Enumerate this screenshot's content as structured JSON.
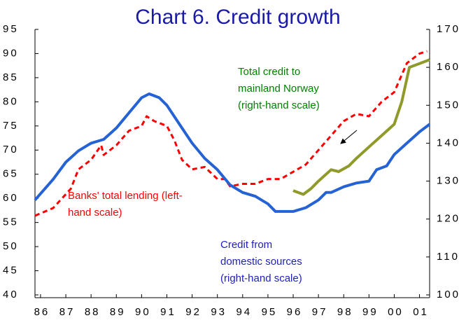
{
  "chart_data": {
    "type": "line",
    "title": "Chart 6. Credit growth",
    "xlim": [
      1985.78,
      2001.4
    ],
    "xticks": [
      {
        "value": 1986,
        "label": "86"
      },
      {
        "value": 1987,
        "label": "87"
      },
      {
        "value": 1988,
        "label": "88"
      },
      {
        "value": 1989,
        "label": "89"
      },
      {
        "value": 1990,
        "label": "90"
      },
      {
        "value": 1991,
        "label": "91"
      },
      {
        "value": 1992,
        "label": "92"
      },
      {
        "value": 1993,
        "label": "93"
      },
      {
        "value": 1994,
        "label": "94"
      },
      {
        "value": 1995,
        "label": "95"
      },
      {
        "value": 1996,
        "label": "96"
      },
      {
        "value": 1997,
        "label": "97"
      },
      {
        "value": 1998,
        "label": "98"
      },
      {
        "value": 1999,
        "label": "99"
      },
      {
        "value": 2000,
        "label": "00"
      },
      {
        "value": 2001,
        "label": "01"
      }
    ],
    "ylim": [
      40,
      95
    ],
    "yticks": [
      40,
      45,
      50,
      55,
      60,
      65,
      70,
      75,
      80,
      85,
      90,
      95
    ],
    "y2lim": [
      100,
      170
    ],
    "y2ticks": [
      100,
      110,
      120,
      130,
      140,
      150,
      160,
      170
    ],
    "series": [
      {
        "name": "Banks' total lending (left-hand scale)",
        "color": "#ff0000",
        "dash": true,
        "axis": "y",
        "x": [
          1985.78,
          1986.5,
          1987.2,
          1987.5,
          1988,
          1988.4,
          1988.5,
          1989,
          1989.5,
          1990,
          1990.2,
          1990.5,
          1991,
          1991.3,
          1991.6,
          1992,
          1992.5,
          1992.8,
          1993,
          1993.3,
          1993.5,
          1994,
          1994.5,
          1995,
          1995.5,
          1996,
          1996.5,
          1997,
          1997.5,
          1998,
          1998.5,
          1999,
          1999.5,
          2000,
          2000.5,
          2001,
          2001.3
        ],
        "values": [
          56.4,
          58,
          62,
          66,
          68,
          71,
          69,
          71,
          74,
          75,
          77,
          76,
          75,
          72,
          68,
          66,
          66.5,
          65,
          64,
          64,
          62.5,
          63,
          63,
          64,
          64,
          65.5,
          67,
          70,
          73,
          76,
          77.5,
          77,
          80,
          82,
          88,
          90,
          90.5
        ]
      },
      {
        "name": "Credit from domestic sources (right-hand scale)",
        "color": "#2563d4",
        "dash": false,
        "axis": "y2",
        "x": [
          1985.78,
          1986.5,
          1987,
          1987.5,
          1988,
          1988.5,
          1989,
          1989.5,
          1990,
          1990.3,
          1990.7,
          1991,
          1991.5,
          1992,
          1992.5,
          1993,
          1993.5,
          1994,
          1994.5,
          1995,
          1995.3,
          1996,
          1996.5,
          1997,
          1997.3,
          1997.5,
          1998,
          1998.5,
          1999,
          1999.3,
          1999.7,
          2000,
          2000.5,
          2001,
          2001.4
        ],
        "values": [
          125,
          130.5,
          135,
          138,
          140,
          141,
          144,
          148,
          152,
          153,
          152,
          150,
          145,
          140,
          136,
          133,
          129,
          127,
          126,
          124,
          122,
          122,
          123,
          125,
          127,
          127,
          128.5,
          129.5,
          130,
          133,
          134,
          137,
          140,
          143,
          145
        ]
      },
      {
        "name": "Total credit to mainland Norway (right-hand scale)",
        "color": "#8f9a2a",
        "dash": false,
        "axis": "y2",
        "x": [
          1996,
          1996.4,
          1996.7,
          1997,
          1997.5,
          1997.8,
          1998.2,
          1998.5,
          1999,
          1999.5,
          2000,
          2000.3,
          2000.6,
          2001,
          2001.4
        ],
        "values": [
          127.5,
          126.5,
          128,
          130,
          133,
          132.5,
          134,
          136,
          139,
          142,
          145,
          151,
          160,
          161,
          162
        ]
      }
    ],
    "annotations": [
      {
        "lines": [
          "Total credit to",
          "mainland Norway",
          "(right-hand scale)"
        ],
        "color": "#008000"
      },
      {
        "lines": [
          "Banks' total lending (left-",
          "hand scale)"
        ],
        "color": "#ff0000"
      },
      {
        "lines": [
          "Credit from",
          "domestic sources",
          "(right-hand scale)"
        ],
        "color": "#2020c0"
      }
    ]
  }
}
